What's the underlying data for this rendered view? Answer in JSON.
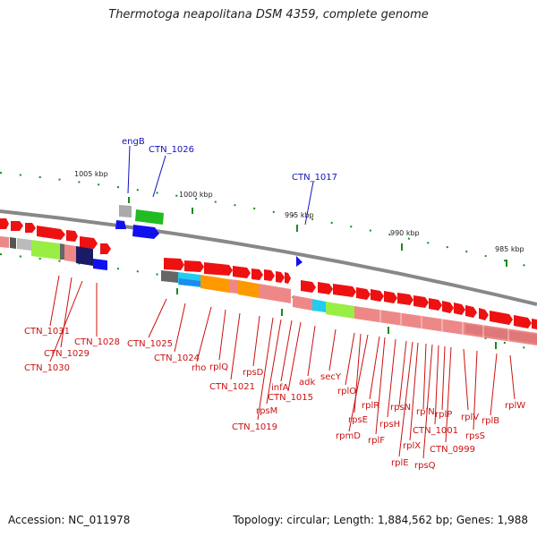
{
  "title": "Thermotoga neapolitana DSM 4359, complete genome",
  "footer": {
    "accession": "Accession: NC_011978",
    "summary": "Topology: circular; Length: 1,884,562 bp; Genes: 1,988"
  },
  "colors": {
    "gene_red": "#ee1111",
    "label_red": "#cc1111",
    "label_blue": "#1111bb",
    "backbone": "#888888"
  },
  "ticks": [
    "1005 kbp",
    "1000 kbp",
    "995 kbp",
    "990 kbp",
    "985 kbp"
  ],
  "labels_top": [
    "engB",
    "CTN_1026",
    "CTN_1017"
  ],
  "labels_bottom": [
    "CTN_1031",
    "CTN_1029",
    "CTN_1030",
    "CTN_1028",
    "CTN_1025",
    "CTN_1024",
    "rho",
    "rplQ",
    "CTN_1021",
    "rpsD",
    "CTN_1019",
    "rpsM",
    "infA",
    "CTN_1015",
    "adk",
    "secY",
    "rplO",
    "rpsE",
    "rpmD",
    "rplR",
    "rplF",
    "rpsH",
    "rpsN",
    "rplE",
    "rplX",
    "rplN",
    "rpsQ",
    "CTN_1001",
    "rplP",
    "CTN_0999",
    "rplV",
    "rpsS",
    "rplB",
    "rplW"
  ]
}
